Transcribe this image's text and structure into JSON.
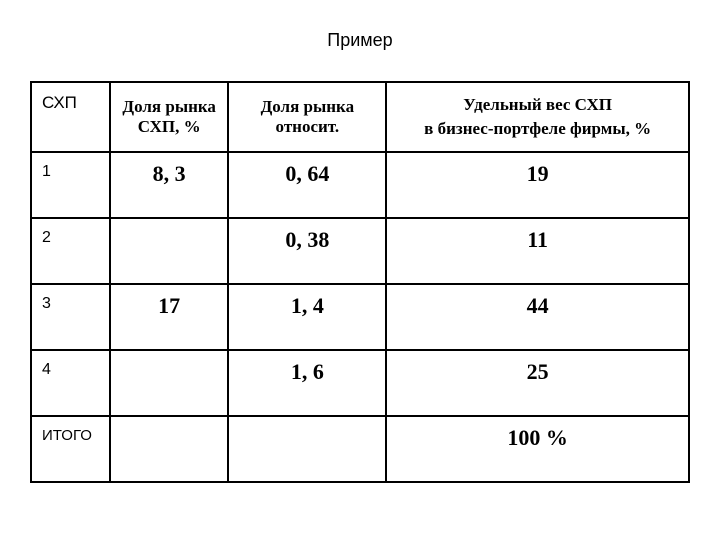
{
  "title": "Пример",
  "table": {
    "headers": {
      "shp": "СХП",
      "share": "Доля рынка СХП, %",
      "rel": "Доля рынка относит.",
      "weight_l1": "Удельный вес СХП",
      "weight_l2": "в бизнес-портфеле фирмы, %"
    },
    "rows": [
      {
        "shp": "1",
        "share": "8, 3",
        "rel": "0, 64",
        "weight": "19"
      },
      {
        "shp": "2",
        "share": "",
        "rel": "0, 38",
        "weight": "11"
      },
      {
        "shp": "3",
        "share": "17",
        "rel": "1, 4",
        "weight": "44"
      },
      {
        "shp": "4",
        "share": "",
        "rel": "1, 6",
        "weight": "25"
      }
    ],
    "total": {
      "label": "ИТОГО",
      "share": "",
      "rel": "",
      "weight": "100 %"
    }
  },
  "style": {
    "background_color": "#ffffff",
    "border_color": "#000000",
    "title_fontsize": 18,
    "header_fontsize": 17,
    "cell_fontsize": 22,
    "label_fontsize": 16
  }
}
